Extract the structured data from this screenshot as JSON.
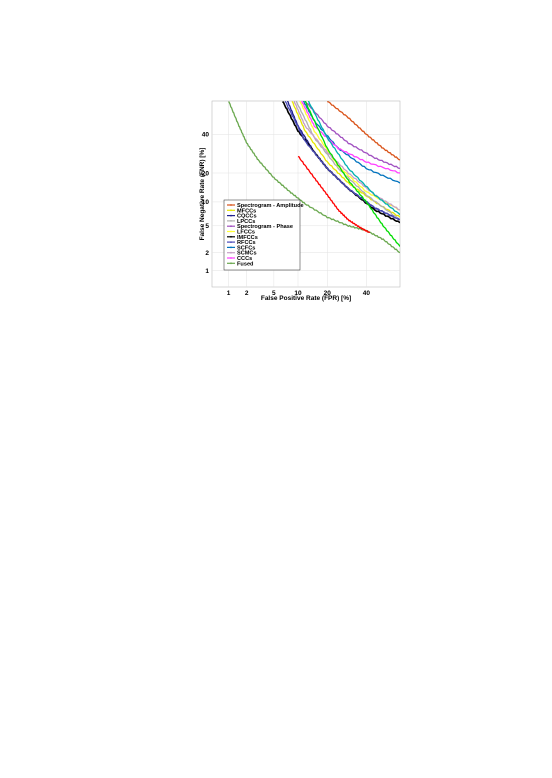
{
  "chart_data": {
    "type": "line",
    "title": "",
    "xlabel": "False Positive Rate (FPR) [%]",
    "ylabel": "False Negative Rate (FNR) [%]",
    "xscale": "probit",
    "yscale": "probit",
    "xlim": [
      0.5,
      60
    ],
    "ylim": [
      0.5,
      60
    ],
    "xticks": [
      1,
      2,
      5,
      10,
      20,
      40
    ],
    "yticks": [
      1,
      2,
      5,
      10,
      20,
      40
    ],
    "grid": true,
    "legend_position": "bottom-left",
    "series": [
      {
        "name": "Spectrogram - Amplitude",
        "color": "#d95319",
        "x": [
          20,
          30,
          40,
          50,
          60
        ],
        "y": [
          60,
          50,
          40,
          32,
          26
        ]
      },
      {
        "name": "MFCCs",
        "color": "#e6e600",
        "x": [
          8.5,
          12,
          20,
          30,
          45,
          60
        ],
        "y": [
          60,
          42,
          25,
          16,
          10,
          6.5
        ]
      },
      {
        "name": "CQCCs",
        "color": "#1f1f8f",
        "x": [
          7.5,
          10,
          15,
          20,
          30,
          45,
          60
        ],
        "y": [
          60,
          45,
          30,
          22,
          14,
          8.5,
          6
        ]
      },
      {
        "name": "LPCCs",
        "color": "#b0b0b0",
        "x": [
          9.5,
          15,
          25,
          40,
          60
        ],
        "y": [
          60,
          38,
          22,
          12,
          6
        ]
      },
      {
        "name": "Spectrogram - Phase",
        "color": "#a050c0",
        "x": [
          12,
          20,
          30,
          45,
          60
        ],
        "y": [
          60,
          45,
          35,
          27,
          22
        ]
      },
      {
        "name": "LFCCs",
        "color": "#ffff33",
        "x": [
          10.5,
          15,
          25,
          40,
          60
        ],
        "y": [
          60,
          42,
          23,
          13,
          8
        ]
      },
      {
        "name": "IMFCCs",
        "color": "#000000",
        "x": [
          6.5,
          10,
          15,
          20,
          30,
          45,
          60
        ],
        "y": [
          60,
          42,
          30,
          22,
          14,
          8,
          5.5
        ]
      },
      {
        "name": "RFCCs",
        "color": "#4a4ab8",
        "x": [
          7,
          12,
          20,
          30,
          45,
          60
        ],
        "y": [
          60,
          36,
          22,
          14,
          8.5,
          6
        ]
      },
      {
        "name": "SCFCs",
        "color": "#0072bd",
        "x": [
          11.5,
          15,
          25,
          40,
          60
        ],
        "y": [
          60,
          48,
          32,
          22,
          16
        ]
      },
      {
        "name": "SCMCs",
        "color": "#c6a0c6",
        "x": [
          9,
          12,
          20,
          30,
          45,
          60
        ],
        "y": [
          60,
          45,
          30,
          20,
          12,
          8
        ]
      },
      {
        "name": "CCCs",
        "color": "#ff40ff",
        "x": [
          11,
          15,
          25,
          40,
          60
        ],
        "y": [
          60,
          45,
          32,
          25,
          20
        ]
      },
      {
        "name": "Fused",
        "color": "#6aa84f",
        "x": [
          1,
          1.5,
          2,
          3,
          5,
          8,
          12,
          20,
          30,
          40,
          50,
          60
        ],
        "y": [
          60,
          45,
          35,
          26,
          18,
          13,
          9.5,
          6.5,
          5,
          4.3,
          3.2,
          2
        ]
      },
      {
        "name": "",
        "color": "#ff0000",
        "x": [
          10,
          15,
          20,
          25,
          30,
          36,
          42
        ],
        "y": [
          28,
          18,
          12,
          8,
          6,
          4.8,
          4
        ]
      },
      {
        "name": "",
        "color": "#00dd00",
        "x": [
          12,
          20,
          30,
          40,
          50,
          60
        ],
        "y": [
          60,
          32,
          17,
          10,
          5,
          2.5
        ]
      },
      {
        "name": "",
        "color": "#00b0b0",
        "x": [
          13,
          20,
          30,
          45,
          60
        ],
        "y": [
          60,
          38,
          22,
          12,
          7
        ]
      }
    ]
  }
}
